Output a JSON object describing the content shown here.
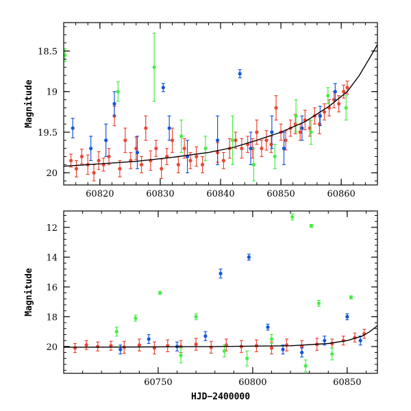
{
  "colors": {
    "red": "#ee4433",
    "green": "#44ee44",
    "blue": "#1155dd",
    "frame": "#000000",
    "curve": "#000000"
  },
  "chart_data": [
    {
      "type": "scatter",
      "ylabel": "Magnitude",
      "xlabel": "",
      "xlim": [
        60814,
        60866
      ],
      "ylim": [
        20.15,
        18.15
      ],
      "y_inverted": true,
      "x_ticks": [
        60820,
        60830,
        60840,
        60850,
        60860
      ],
      "y_ticks": [
        18.5,
        19,
        19.5,
        20
      ],
      "y_tick_labels": [
        "18.5",
        "19",
        "19.5",
        "20"
      ],
      "model_curve": {
        "x": [
          60814,
          60820,
          60826,
          60832,
          60838,
          60842,
          60846,
          60850,
          60854,
          60858,
          60861,
          60863,
          60865,
          60866
        ],
        "y": [
          19.92,
          19.89,
          19.86,
          19.81,
          19.75,
          19.69,
          19.6,
          19.5,
          19.37,
          19.18,
          19.0,
          18.8,
          18.55,
          18.42
        ]
      },
      "series": [
        {
          "color": "red",
          "points": [
            [
              60815.2,
              19.85,
              0.08
            ],
            [
              60816.1,
              19.95,
              0.1
            ],
            [
              60817.0,
              19.8,
              0.09
            ],
            [
              60818.0,
              19.9,
              0.12
            ],
            [
              60819.0,
              20.0,
              0.1
            ],
            [
              60819.8,
              19.85,
              0.11
            ],
            [
              60820.6,
              19.9,
              0.08
            ],
            [
              60821.5,
              19.8,
              0.1
            ],
            [
              60822.4,
              19.3,
              0.12
            ],
            [
              60823.3,
              19.95,
              0.1
            ],
            [
              60824.2,
              19.6,
              0.15
            ],
            [
              60825.1,
              19.85,
              0.1
            ],
            [
              60826.0,
              19.7,
              0.14
            ],
            [
              60826.9,
              19.9,
              0.1
            ],
            [
              60827.6,
              19.45,
              0.15
            ],
            [
              60828.4,
              19.85,
              0.12
            ],
            [
              60829.3,
              19.7,
              0.1
            ],
            [
              60830.2,
              19.95,
              0.12
            ],
            [
              60831.1,
              19.8,
              0.1
            ],
            [
              60832.0,
              19.6,
              0.15
            ],
            [
              60833.0,
              19.9,
              0.1
            ],
            [
              60834.0,
              19.7,
              0.12
            ],
            [
              60835.0,
              19.85,
              0.1
            ],
            [
              60836.0,
              19.8,
              0.12
            ],
            [
              60837.0,
              19.9,
              0.1
            ],
            [
              60839.5,
              19.75,
              0.12
            ],
            [
              60840.5,
              19.85,
              0.1
            ],
            [
              60841.5,
              19.7,
              0.12
            ],
            [
              60842.5,
              19.6,
              0.1
            ],
            [
              60843.5,
              19.7,
              0.12
            ],
            [
              60844.5,
              19.65,
              0.1
            ],
            [
              60845.3,
              19.7,
              0.12
            ],
            [
              60846.0,
              19.5,
              0.15
            ],
            [
              60846.8,
              19.7,
              0.1
            ],
            [
              60847.6,
              19.6,
              0.12
            ],
            [
              60848.4,
              19.65,
              0.1
            ],
            [
              60849.2,
              19.2,
              0.15
            ],
            [
              60850.0,
              19.5,
              0.1
            ],
            [
              60850.8,
              19.6,
              0.12
            ],
            [
              60851.6,
              19.45,
              0.1
            ],
            [
              60852.4,
              19.4,
              0.12
            ],
            [
              60853.2,
              19.5,
              0.1
            ],
            [
              60854.0,
              19.35,
              0.12
            ],
            [
              60854.8,
              19.45,
              0.1
            ],
            [
              60855.6,
              19.3,
              0.1
            ],
            [
              60856.4,
              19.4,
              0.12
            ],
            [
              60857.2,
              19.25,
              0.1
            ],
            [
              60858.0,
              19.2,
              0.1
            ],
            [
              60858.8,
              19.1,
              0.1
            ],
            [
              60859.6,
              19.15,
              0.1
            ],
            [
              60860.4,
              19.0,
              0.08
            ],
            [
              60861.0,
              18.95,
              0.08
            ]
          ]
        },
        {
          "color": "green",
          "points": [
            [
              60814.2,
              18.55,
              0.08
            ],
            [
              60823.0,
              19.0,
              0.12
            ],
            [
              60829.0,
              18.7,
              0.42
            ],
            [
              60833.5,
              19.55,
              0.2
            ],
            [
              60837.5,
              19.7,
              0.15
            ],
            [
              60842.0,
              19.6,
              0.3
            ],
            [
              60845.5,
              19.9,
              0.2
            ],
            [
              60849.0,
              19.8,
              0.15
            ],
            [
              60852.5,
              19.3,
              0.2
            ],
            [
              60855.0,
              19.5,
              0.15
            ],
            [
              60857.8,
              19.05,
              0.1
            ],
            [
              60860.8,
              19.2,
              0.15
            ]
          ]
        },
        {
          "color": "blue",
          "points": [
            [
              60815.5,
              19.45,
              0.12
            ],
            [
              60818.5,
              19.7,
              0.15
            ],
            [
              60821.0,
              19.6,
              0.2
            ],
            [
              60822.4,
              19.15,
              0.15
            ],
            [
              60826.2,
              19.75,
              0.2
            ],
            [
              60830.5,
              18.95,
              0.05
            ],
            [
              60831.5,
              19.45,
              0.15
            ],
            [
              60834.5,
              19.8,
              0.2
            ],
            [
              60839.5,
              19.6,
              0.3
            ],
            [
              60843.2,
              18.78,
              0.05
            ],
            [
              60845.0,
              19.7,
              0.2
            ],
            [
              60848.5,
              19.5,
              0.2
            ],
            [
              60850.5,
              19.7,
              0.2
            ],
            [
              60853.5,
              19.45,
              0.15
            ],
            [
              60856.5,
              19.3,
              0.12
            ],
            [
              60859.0,
              19.0,
              0.1
            ]
          ]
        }
      ]
    },
    {
      "type": "scatter",
      "ylabel": "Magnitude",
      "xlabel": "HJD−2400000",
      "xlim": [
        60700,
        60866
      ],
      "ylim": [
        21.8,
        10.9
      ],
      "y_inverted": true,
      "x_ticks": [
        60750,
        60800,
        60850
      ],
      "y_ticks": [
        12,
        14,
        16,
        18,
        20
      ],
      "y_tick_labels": [
        "12",
        "14",
        "16",
        "18",
        "20"
      ],
      "model_curve": {
        "x": [
          60700,
          60740,
          60780,
          60820,
          60840,
          60850,
          60858,
          60862,
          60866
        ],
        "y": [
          20.05,
          20.03,
          20.0,
          19.95,
          19.8,
          19.6,
          19.3,
          19.0,
          18.6
        ]
      },
      "series": [
        {
          "color": "red",
          "points": [
            [
              60706,
              20.1,
              0.3
            ],
            [
              60712,
              19.9,
              0.3
            ],
            [
              60718,
              20.0,
              0.3
            ],
            [
              60725,
              19.95,
              0.3
            ],
            [
              60732,
              20.05,
              0.4
            ],
            [
              60740,
              19.9,
              0.4
            ],
            [
              60748,
              20.1,
              0.4
            ],
            [
              60755,
              19.95,
              0.4
            ],
            [
              60762,
              20.0,
              0.4
            ],
            [
              60770,
              19.85,
              0.4
            ],
            [
              60778,
              20.05,
              0.4
            ],
            [
              60786,
              19.9,
              0.4
            ],
            [
              60794,
              20.0,
              0.4
            ],
            [
              60802,
              19.95,
              0.4
            ],
            [
              60810,
              20.1,
              0.4
            ],
            [
              60818,
              19.9,
              0.4
            ],
            [
              60826,
              20.0,
              0.4
            ],
            [
              60834,
              19.85,
              0.4
            ],
            [
              60842,
              19.8,
              0.3
            ],
            [
              60848,
              19.6,
              0.3
            ],
            [
              60854,
              19.4,
              0.3
            ],
            [
              60859,
              19.15,
              0.3
            ]
          ]
        },
        {
          "color": "green",
          "points": [
            [
              60728,
              19.0,
              0.3
            ],
            [
              60738,
              18.1,
              0.2
            ],
            [
              60751,
              16.4,
              0.1
            ],
            [
              60762,
              20.6,
              0.5
            ],
            [
              60770,
              18.0,
              0.2
            ],
            [
              60785,
              20.3,
              0.4
            ],
            [
              60797,
              20.8,
              0.5
            ],
            [
              60810,
              19.5,
              0.3
            ],
            [
              60821,
              11.3,
              0.2
            ],
            [
              60828,
              21.3,
              0.4
            ],
            [
              60831,
              11.9,
              0.1
            ],
            [
              60835,
              17.1,
              0.2
            ],
            [
              60842,
              20.5,
              0.4
            ],
            [
              60852,
              16.7,
              0.1
            ]
          ]
        },
        {
          "color": "blue",
          "points": [
            [
              60730,
              20.2,
              0.3
            ],
            [
              60745,
              19.5,
              0.3
            ],
            [
              60760,
              20.0,
              0.3
            ],
            [
              60775,
              19.3,
              0.3
            ],
            [
              60783,
              15.1,
              0.3
            ],
            [
              60798,
              14.0,
              0.2
            ],
            [
              60808,
              18.7,
              0.2
            ],
            [
              60816,
              20.2,
              0.3
            ],
            [
              60826,
              20.4,
              0.3
            ],
            [
              60838,
              19.6,
              0.3
            ],
            [
              60850,
              18.0,
              0.2
            ],
            [
              60857,
              19.6,
              0.3
            ]
          ]
        }
      ]
    }
  ]
}
